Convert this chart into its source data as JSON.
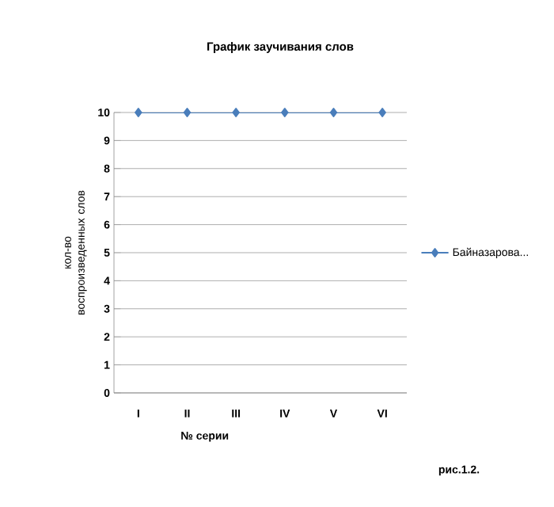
{
  "chart_data": {
    "type": "line",
    "title": "График заучивания слов",
    "xlabel": "№ серии",
    "ylabel": "кол-во воспроизведенных слов",
    "categories": [
      "I",
      "II",
      "III",
      "IV",
      "V",
      "VI"
    ],
    "series": [
      {
        "name": "Байназарова...",
        "color": "#4a7ebb",
        "values": [
          10,
          10,
          10,
          10,
          10,
          10
        ]
      }
    ],
    "ylim": [
      0,
      10
    ],
    "yticks": [
      0,
      1,
      2,
      3,
      4,
      5,
      6,
      7,
      8,
      9,
      10
    ],
    "grid": "y",
    "legend": "right",
    "marker": "diamond",
    "line_style": "solid",
    "annotations": [
      "рис.1.2."
    ]
  }
}
